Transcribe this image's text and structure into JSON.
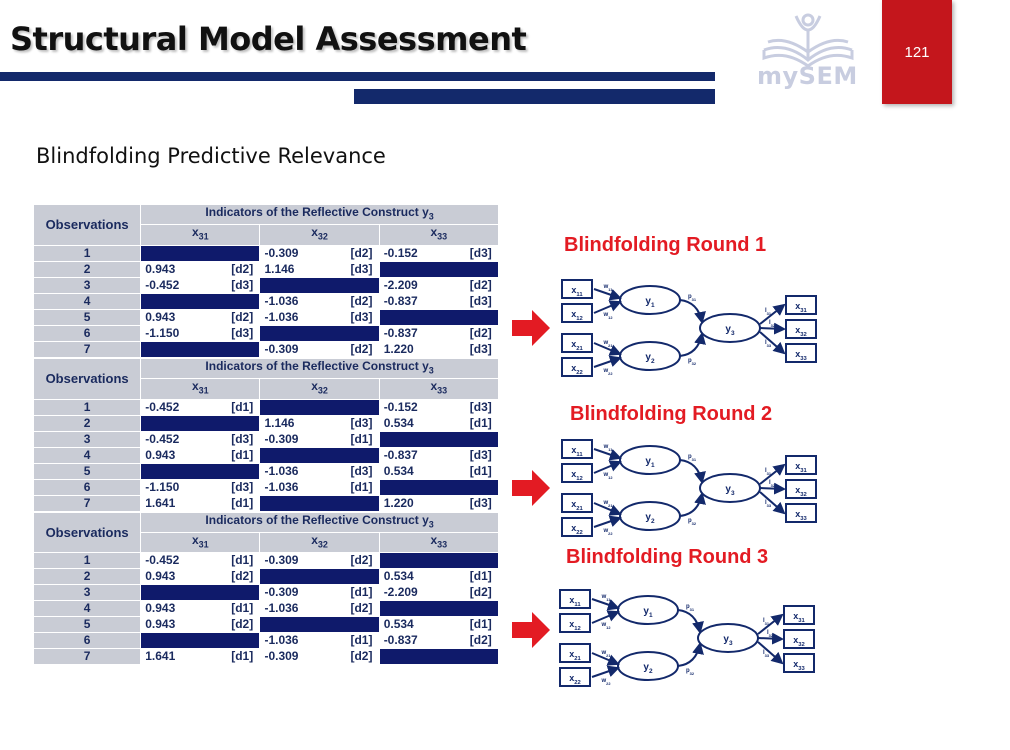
{
  "header": {
    "title": "Structural Model Assessment",
    "logo_text": "mySEM",
    "page_number": "121"
  },
  "subtitle": "Blindfolding Predictive Relevance",
  "table_headers": {
    "observations": "Observations",
    "group_prefix": "Indicators of the Reflective Construct y",
    "group_sub": "3",
    "columns": [
      {
        "base": "x",
        "sub": "31"
      },
      {
        "base": "x",
        "sub": "32"
      },
      {
        "base": "x",
        "sub": "33"
      }
    ]
  },
  "tables": [
    {
      "rows": [
        {
          "obs": "1",
          "cells": [
            null,
            {
              "v": "-0.309",
              "d": "[d2]"
            },
            {
              "v": "-0.152",
              "d": "[d3]"
            }
          ]
        },
        {
          "obs": "2",
          "cells": [
            {
              "v": "0.943",
              "d": "[d2]"
            },
            {
              "v": "1.146",
              "d": "[d3]"
            },
            null
          ]
        },
        {
          "obs": "3",
          "cells": [
            {
              "v": "-0.452",
              "d": "[d3]"
            },
            null,
            {
              "v": "-2.209",
              "d": "[d2]"
            }
          ]
        },
        {
          "obs": "4",
          "cells": [
            null,
            {
              "v": "-1.036",
              "d": "[d2]"
            },
            {
              "v": "-0.837",
              "d": "[d3]"
            }
          ]
        },
        {
          "obs": "5",
          "cells": [
            {
              "v": "0.943",
              "d": "[d2]"
            },
            {
              "v": "-1.036",
              "d": "[d3]"
            },
            null
          ]
        },
        {
          "obs": "6",
          "cells": [
            {
              "v": "-1.150",
              "d": "[d3]"
            },
            null,
            {
              "v": "-0.837",
              "d": "[d2]"
            }
          ]
        },
        {
          "obs": "7",
          "cells": [
            null,
            {
              "v": "-0.309",
              "d": "[d2]"
            },
            {
              "v": "1.220",
              "d": "[d3]"
            }
          ]
        }
      ]
    },
    {
      "rows": [
        {
          "obs": "1",
          "cells": [
            {
              "v": "-0.452",
              "d": "[d1]"
            },
            null,
            {
              "v": "-0.152",
              "d": "[d3]"
            }
          ]
        },
        {
          "obs": "2",
          "cells": [
            null,
            {
              "v": "1.146",
              "d": "[d3]"
            },
            {
              "v": "0.534",
              "d": "[d1]"
            }
          ]
        },
        {
          "obs": "3",
          "cells": [
            {
              "v": "-0.452",
              "d": "[d3]"
            },
            {
              "v": "-0.309",
              "d": "[d1]"
            },
            null
          ]
        },
        {
          "obs": "4",
          "cells": [
            {
              "v": "0.943",
              "d": "[d1]"
            },
            null,
            {
              "v": "-0.837",
              "d": "[d3]"
            }
          ]
        },
        {
          "obs": "5",
          "cells": [
            null,
            {
              "v": "-1.036",
              "d": "[d3]"
            },
            {
              "v": "0.534",
              "d": "[d1]"
            }
          ]
        },
        {
          "obs": "6",
          "cells": [
            {
              "v": "-1.150",
              "d": "[d3]"
            },
            {
              "v": "-1.036",
              "d": "[d1]"
            },
            null
          ]
        },
        {
          "obs": "7",
          "cells": [
            {
              "v": "1.641",
              "d": "[d1]"
            },
            null,
            {
              "v": "1.220",
              "d": "[d3]"
            }
          ]
        }
      ]
    },
    {
      "rows": [
        {
          "obs": "1",
          "cells": [
            {
              "v": "-0.452",
              "d": "[d1]"
            },
            {
              "v": "-0.309",
              "d": "[d2]"
            },
            null
          ]
        },
        {
          "obs": "2",
          "cells": [
            {
              "v": "0.943",
              "d": "[d2]"
            },
            null,
            {
              "v": "0.534",
              "d": "[d1]"
            }
          ]
        },
        {
          "obs": "3",
          "cells": [
            null,
            {
              "v": "-0.309",
              "d": "[d1]"
            },
            {
              "v": "-2.209",
              "d": "[d2]"
            }
          ]
        },
        {
          "obs": "4",
          "cells": [
            {
              "v": "0.943",
              "d": "[d1]"
            },
            {
              "v": "-1.036",
              "d": "[d2]"
            },
            null
          ]
        },
        {
          "obs": "5",
          "cells": [
            {
              "v": "0.943",
              "d": "[d2]"
            },
            null,
            {
              "v": "0.534",
              "d": "[d1]"
            }
          ]
        },
        {
          "obs": "6",
          "cells": [
            null,
            {
              "v": "-1.036",
              "d": "[d1]"
            },
            {
              "v": "-0.837",
              "d": "[d2]"
            }
          ]
        },
        {
          "obs": "7",
          "cells": [
            {
              "v": "1.641",
              "d": "[d1]"
            },
            {
              "v": "-0.309",
              "d": "[d2]"
            },
            null
          ]
        }
      ]
    }
  ],
  "rounds": [
    {
      "title": "Blindfolding Round 1"
    },
    {
      "title": "Blindfolding Round 2"
    },
    {
      "title": "Blindfolding Round 3"
    }
  ],
  "diagram_labels": {
    "indicators_left": [
      {
        "base": "x",
        "sub": "11"
      },
      {
        "base": "x",
        "sub": "12"
      },
      {
        "base": "x",
        "sub": "21"
      },
      {
        "base": "x",
        "sub": "22"
      }
    ],
    "indicators_right": [
      {
        "base": "x",
        "sub": "31"
      },
      {
        "base": "x",
        "sub": "32"
      },
      {
        "base": "x",
        "sub": "33"
      }
    ],
    "constructs": [
      {
        "base": "y",
        "sub": "1"
      },
      {
        "base": "y",
        "sub": "2"
      },
      {
        "base": "y",
        "sub": "3"
      }
    ],
    "weights": [
      {
        "base": "w",
        "sub": "11"
      },
      {
        "base": "w",
        "sub": "12"
      },
      {
        "base": "w",
        "sub": "21"
      },
      {
        "base": "w",
        "sub": "22"
      }
    ],
    "paths": [
      {
        "base": "p",
        "sub": "31"
      },
      {
        "base": "p",
        "sub": "32"
      }
    ],
    "loadings": [
      {
        "base": "l",
        "sub": "31"
      },
      {
        "base": "l",
        "sub": "32"
      },
      {
        "base": "l",
        "sub": "33"
      }
    ]
  },
  "colors": {
    "navy": "#13296b",
    "cell_fill": "#0f1a6b",
    "header_gray": "#c9ccd5",
    "accent_red": "#c4161c",
    "round_title_red": "#e31b23"
  }
}
